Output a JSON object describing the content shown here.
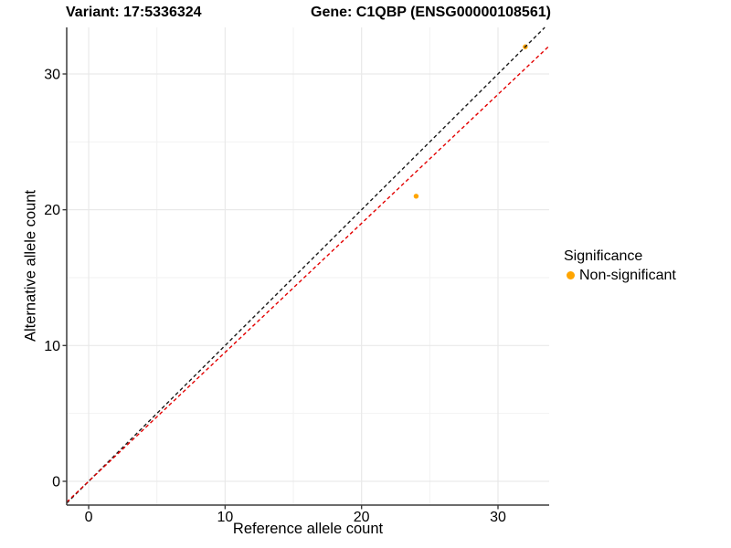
{
  "chart_data": {
    "type": "scatter",
    "title_variant": "Variant: 17:5336324",
    "title_gene": "Gene: C1QBP (ENSG00000108561)",
    "xlabel": "Reference allele count",
    "ylabel": "Alternative allele count",
    "xlim": [
      -1.61,
      33.75
    ],
    "ylim": [
      -1.75,
      33.43
    ],
    "x_ticks": [
      0,
      10,
      20,
      30
    ],
    "x_minor_ticks": [
      5,
      15,
      25
    ],
    "y_ticks": [
      0,
      10,
      20,
      30
    ],
    "y_minor_ticks": [
      5,
      15,
      25
    ],
    "grid": true,
    "points": [
      {
        "x": 24,
        "y": 21,
        "series": "Non-significant",
        "color": "#FFA500"
      },
      {
        "x": 32,
        "y": 32,
        "series": "Non-significant",
        "color": "#FFA500"
      }
    ],
    "lines": [
      {
        "name": "identity-line",
        "slope": 1,
        "intercept": 0,
        "color": "#1A1A1A",
        "style": "dashed"
      },
      {
        "name": "expected-ratio-line",
        "slope": 0.95,
        "intercept": 0,
        "color": "#E30000",
        "style": "dashed"
      }
    ],
    "legend": {
      "position": "right",
      "title": "Significance",
      "items": [
        {
          "label": "Non-significant",
          "color": "#FFA500"
        }
      ]
    },
    "colors": {
      "point_orange": "#FFA500",
      "identity_line": "#1A1A1A",
      "ratio_line": "#E30000",
      "axis_line": "#3C3C3C",
      "grid_major": "#E9E9E9",
      "grid_minor": "#F2F2F2",
      "text": "#000000"
    }
  }
}
